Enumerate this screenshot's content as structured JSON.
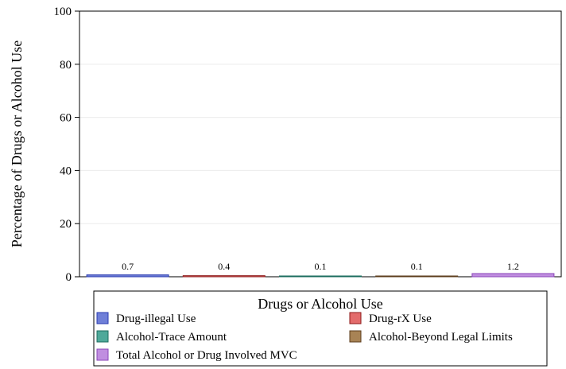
{
  "chart_data": {
    "type": "bar",
    "title": "",
    "xlabel": "",
    "ylabel": "Percentage of Drugs or Alcohol Use",
    "ylim": [
      0,
      100
    ],
    "yticks": [
      0,
      20,
      40,
      60,
      80,
      100
    ],
    "grid": true,
    "legend_title": "Drugs or Alcohol Use",
    "legend_position": "bottom",
    "series": [
      {
        "name": "Drug-illegal Use",
        "value": 0.7,
        "label": "0.7",
        "fill": "#6f7fd8",
        "stroke": "#2a3bb0"
      },
      {
        "name": "Drug-rX Use",
        "value": 0.4,
        "label": "0.4",
        "fill": "#e36b6b",
        "stroke": "#8e1a1a"
      },
      {
        "name": "Alcohol-Trace Amount",
        "value": 0.1,
        "label": "0.1",
        "fill": "#4fa99a",
        "stroke": "#1b6c5e"
      },
      {
        "name": "Alcohol-Beyond Legal Limits",
        "value": 0.1,
        "label": "0.1",
        "fill": "#a88355",
        "stroke": "#5c3d1c"
      },
      {
        "name": "Total Alcohol or Drug Involved MVC",
        "value": 1.2,
        "label": "1.2",
        "fill": "#c08ee0",
        "stroke": "#8a45b8"
      }
    ]
  }
}
